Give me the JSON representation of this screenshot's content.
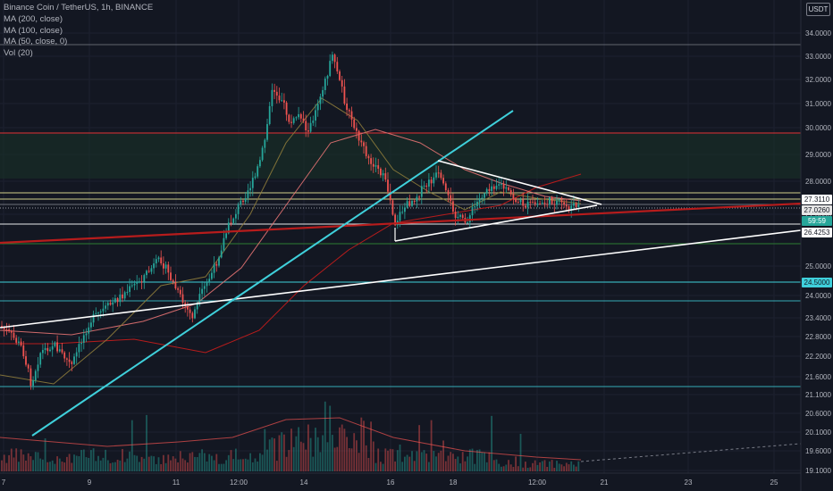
{
  "header": {
    "title": "Binance Coin / TetherUS, 1h, BINANCE",
    "indicators": [
      "MA (200, close)",
      "MA (100, close)",
      "MA (50, close, 0)",
      "Vol (20)"
    ],
    "currency": "USDT"
  },
  "price_tags": {
    "upper": "27.3110",
    "current": "27.0260",
    "countdown": "59:59",
    "lower": "26.4253",
    "support": "24.5000"
  },
  "colors": {
    "background": "#131722",
    "up": "#26a69a",
    "down": "#ef5350",
    "trend_white": "#ffffff",
    "trend_cyan": "#3fd0db",
    "hline_red": "#e53935",
    "hline_green": "#2e7d32",
    "hline_yellow": "#e6e496",
    "ma200": "#b71c1c",
    "ma100": "#e57373",
    "ma50": "#8d7b3b"
  },
  "chart_data": {
    "type": "candlestick",
    "symbol": "BNB/USDT",
    "interval": "1h",
    "x_ticks": [
      "7",
      "9",
      "11",
      "12:00",
      "14",
      "16",
      "18",
      "12:00",
      "21",
      "23",
      "25"
    ],
    "y_ticks": [
      "34.0000",
      "33.0000",
      "32.0000",
      "31.0000",
      "30.0000",
      "29.0000",
      "28.0000",
      "27.0000",
      "25.0000",
      "24.0000",
      "23.4000",
      "22.8000",
      "22.2000",
      "21.6000",
      "21.1000",
      "20.6000",
      "20.1000",
      "19.6000",
      "19.1000"
    ],
    "horizontal_levels": [
      33.5,
      29.83,
      27.4,
      27.25,
      27.12,
      26.6,
      25.85,
      24.5,
      23.9,
      21.3
    ],
    "approx_price_range": [
      19.0,
      34.0
    ],
    "series": [
      {
        "name": "MA (200, close)"
      },
      {
        "name": "MA (100, close)"
      },
      {
        "name": "MA (50, close, 0)"
      },
      {
        "name": "Vol (20)"
      }
    ],
    "pattern_annotations": [
      "symmetrical triangle",
      "ascending trendlines"
    ]
  }
}
